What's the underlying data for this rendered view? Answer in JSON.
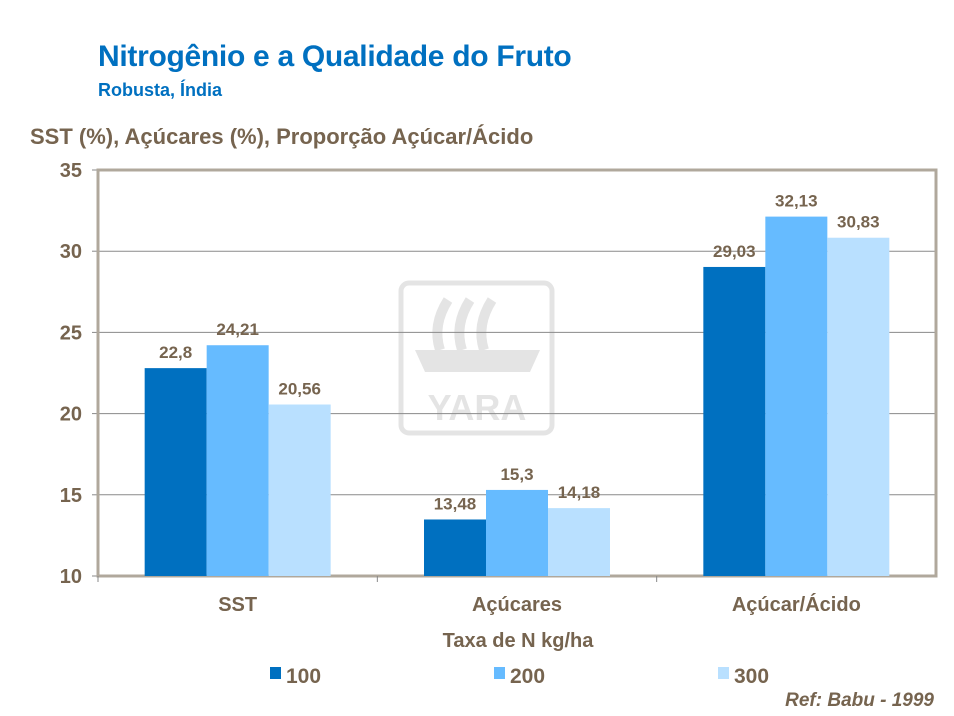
{
  "title": "Nitrogênio e a Qualidade do Fruto",
  "subtitle": "Robusta, Índia",
  "reference": "Ref: Babu - 1999",
  "watermark": "YARA",
  "chart_data": {
    "type": "bar",
    "title": "Nitrogênio e a Qualidade do Fruto",
    "ylabel": "SST (%), Açúcares (%), Proporção Açúcar/Ácido",
    "xlabel": "Taxa de N kg/ha",
    "ylim": [
      10,
      35
    ],
    "yticks": [
      10,
      15,
      20,
      25,
      30,
      35
    ],
    "categories": [
      "SST",
      "Açúcares",
      "Açúcar/Ácido"
    ],
    "series": [
      {
        "name": "100",
        "color": "#0070c0",
        "values": [
          22.8,
          13.48,
          29.03
        ],
        "labels": [
          "22,8",
          "13,48",
          "29,03"
        ]
      },
      {
        "name": "200",
        "color": "#66bbff",
        "values": [
          24.21,
          15.3,
          32.13
        ],
        "labels": [
          "24,21",
          "15,3",
          "32,13"
        ]
      },
      {
        "name": "300",
        "color": "#b9e0ff",
        "values": [
          20.56,
          14.18,
          30.83
        ],
        "labels": [
          "20,56",
          "14,18",
          "30,83"
        ]
      }
    ],
    "grid": true,
    "legend": "bottom"
  }
}
